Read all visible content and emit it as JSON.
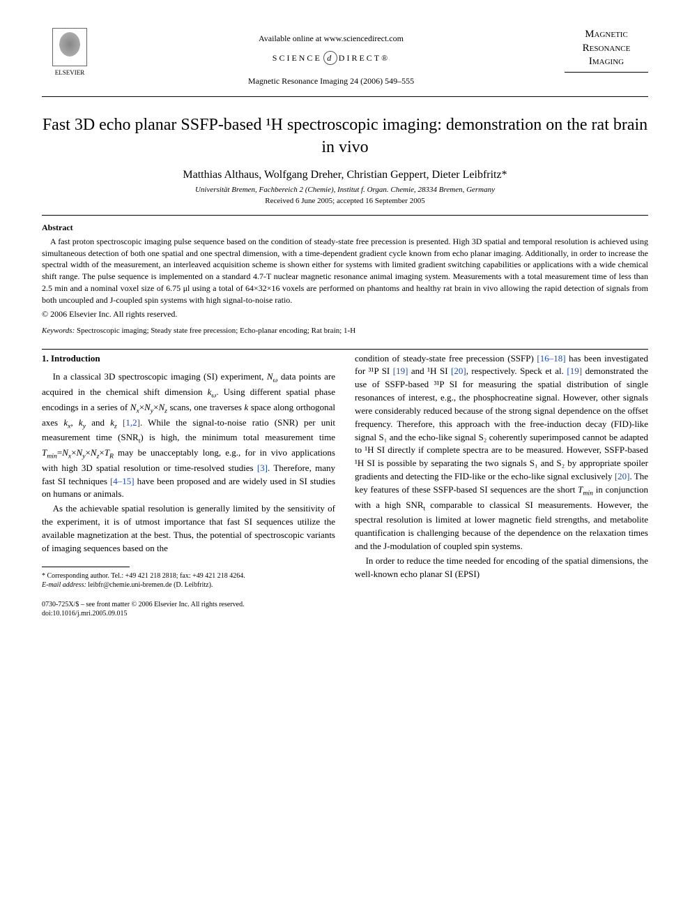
{
  "header": {
    "publisher_name": "ELSEVIER",
    "available_line": "Available online at www.sciencedirect.com",
    "sciencedirect_pre": "SCIENCE",
    "sciencedirect_d": "d",
    "sciencedirect_post": "DIRECT®",
    "journal_ref": "Magnetic Resonance Imaging 24 (2006) 549–555",
    "journal_logo_line1": "Magnetic",
    "journal_logo_line2": "Resonance",
    "journal_logo_line3": "Imaging"
  },
  "title": "Fast 3D echo planar SSFP-based ¹H spectroscopic imaging: demonstration on the rat brain in vivo",
  "authors": "Matthias Althaus, Wolfgang Dreher, Christian Geppert, Dieter Leibfritz*",
  "affiliation": "Universität Bremen, Fachbereich 2 (Chemie), Institut f. Organ. Chemie, 28334 Bremen, Germany",
  "dates": "Received 6 June 2005; accepted 16 September 2005",
  "abstract": {
    "heading": "Abstract",
    "text": "A fast proton spectroscopic imaging pulse sequence based on the condition of steady-state free precession is presented. High 3D spatial and temporal resolution is achieved using simultaneous detection of both one spatial and one spectral dimension, with a time-dependent gradient cycle known from echo planar imaging. Additionally, in order to increase the spectral width of the measurement, an interleaved acquisition scheme is shown either for systems with limited gradient switching capabilities or applications with a wide chemical shift range. The pulse sequence is implemented on a standard 4.7-T nuclear magnetic resonance animal imaging system. Measurements with a total measurement time of less than 2.5 min and a nominal voxel size of 6.75 μl using a total of 64×32×16 voxels are performed on phantoms and healthy rat brain in vivo allowing the rapid detection of signals from both uncoupled and J-coupled spin systems with high signal-to-noise ratio.",
    "copyright": "© 2006 Elsevier Inc. All rights reserved."
  },
  "keywords": {
    "label": "Keywords:",
    "text": " Spectroscopic imaging; Steady state free precession; Echo-planar encoding; Rat brain; 1-H"
  },
  "sections": {
    "intro_heading": "1. Introduction",
    "col1_p1_a": "In a classical 3D spectroscopic imaging (SI) experiment, ",
    "col1_p1_b": " data points are acquired in the chemical shift dimension ",
    "col1_p1_c": ". Using different spatial phase encodings in a series of ",
    "col1_p1_d": " scans, one traverses ",
    "col1_p1_e": " space along orthogonal axes ",
    "col1_p1_f": " and ",
    "col1_p1_ref12": "[1,2]",
    "col1_p1_g": ". While the signal-to-noise ratio (SNR) per unit measurement time (SNR",
    "col1_p1_h": ") is high, the minimum total measurement time ",
    "col1_p1_i": " may be unacceptably long, e.g., for in vivo applications with high 3D spatial resolution or time-resolved studies ",
    "col1_p1_ref3": "[3]",
    "col1_p1_j": ". Therefore, many fast SI techniques ",
    "col1_p1_ref415": "[4–15]",
    "col1_p1_k": " have been proposed and are widely used in SI studies on humans or animals.",
    "col1_p2": "As the achievable spatial resolution is generally limited by the sensitivity of the experiment, it is of utmost importance that fast SI sequences utilize the available magnetization at the best. Thus, the potential of spectroscopic variants of imaging sequences based on the",
    "col2_p1_a": "condition of steady-state free precession (SSFP) ",
    "col2_ref1618": "[16–18]",
    "col2_p1_b": " has been investigated for ³¹P SI ",
    "col2_ref19a": "[19]",
    "col2_p1_c": " and ¹H SI ",
    "col2_ref20a": "[20]",
    "col2_p1_d": ", respectively. Speck et al. ",
    "col2_ref19b": "[19]",
    "col2_p1_e": " demonstrated the use of SSFP-based ³¹P SI for measuring the spatial distribution of single resonances of interest, e.g., the phosphocreatine signal. However, other signals were considerably reduced because of the strong signal dependence on the offset frequency. Therefore, this approach with the free-induction decay (FID)-like signal S₁ and the echo-like signal S₂ coherently superimposed cannot be adapted to ¹H SI directly if complete spectra are to be measured. However, SSFP-based ¹H SI is possible by separating the two signals S₁ and S₂ by appropriate spoiler gradients and detecting the FID-like or the echo-like signal exclusively ",
    "col2_ref20b": "[20]",
    "col2_p1_f": ". The key features of these SSFP-based SI sequences are the short ",
    "col2_p1_g": " in conjunction with a high SNR",
    "col2_p1_h": " comparable to classical SI measurements. However, the spectral resolution is limited at lower magnetic field strengths, and metabolite quantification is challenging because of the dependence on the relaxation times and the J-modulation of coupled spin systems.",
    "col2_p2": "In order to reduce the time needed for encoding of the spatial dimensions, the well-known echo planar SI (EPSI)"
  },
  "math": {
    "N_omega": "N",
    "omega_sub": "ω",
    "k_omega": "k",
    "NxNyNz": "N",
    "x_sub": "x",
    "y_sub": "y",
    "z_sub": "z",
    "times": "×",
    "k_var": "k",
    "kx": "k",
    "ky": "k",
    "kz": "k",
    "comma": ", ",
    "t_sub": "t",
    "Tmin": "T",
    "min_sub": "min",
    "eq": "=",
    "TR": "T",
    "R_sub": "R"
  },
  "footnote": {
    "corr": "* Corresponding author. Tel.: +49 421 218 2818; fax: +49 421 218 4264.",
    "email_label": "E-mail address:",
    "email": " leibfr@chemie.uni-bremen.de (D. Leibfritz)."
  },
  "footer": {
    "line1": "0730-725X/$ – see front matter © 2006 Elsevier Inc. All rights reserved.",
    "line2": "doi:10.1016/j.mri.2005.09.015"
  },
  "colors": {
    "link": "#1a4bbf",
    "text": "#000000",
    "bg": "#ffffff"
  }
}
